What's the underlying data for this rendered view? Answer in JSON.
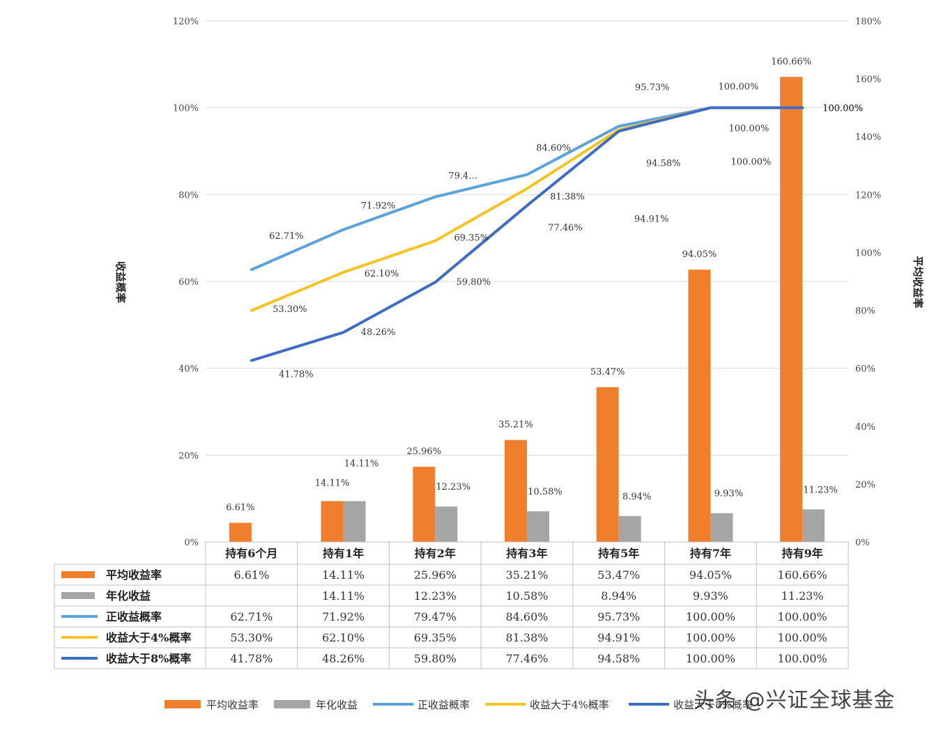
{
  "chart_data": {
    "type": "bar",
    "title": "",
    "categories": [
      "持有6个月",
      "持有1年",
      "持有2年",
      "持有3年",
      "持有5年",
      "持有7年",
      "持有9年"
    ],
    "left_axis": {
      "label": "收益概率",
      "range": [
        0,
        120
      ],
      "ticks": [
        "0%",
        "20%",
        "40%",
        "60%",
        "80%",
        "100%",
        "120%"
      ]
    },
    "right_axis": {
      "label": "平均收益率",
      "range": [
        0,
        180
      ],
      "ticks": [
        "0%",
        "20%",
        "40%",
        "60%",
        "80%",
        "100%",
        "120%",
        "140%",
        "160%",
        "180%"
      ]
    },
    "bar_series": [
      {
        "name": "平均收益率",
        "color": "#f07f2d",
        "axis": "right",
        "values": [
          6.61,
          14.11,
          25.96,
          35.21,
          53.47,
          94.05,
          160.66
        ],
        "labels": [
          "6.61%",
          "14.11%",
          "25.96%",
          "35.21%",
          "53.47%",
          "94.05%",
          "160.66%"
        ],
        "table": [
          "6.61%",
          "14.11%",
          "25.96%",
          "35.21%",
          "53.47%",
          "94.05%",
          "160.66%"
        ]
      },
      {
        "name": "年化收益",
        "color": "#a5a5a5",
        "axis": "right",
        "values": [
          null,
          14.11,
          12.23,
          10.58,
          8.94,
          9.93,
          11.23
        ],
        "labels": [
          "",
          "14.11%",
          "12.23%",
          "10.58%",
          "8.94%",
          "9.93%",
          "11.23%"
        ],
        "table": [
          "",
          "14.11%",
          "12.23%",
          "10.58%",
          "8.94%",
          "9.93%",
          "11.23%"
        ]
      }
    ],
    "line_series": [
      {
        "name": "正收益概率",
        "color": "#5aa2dc",
        "axis": "left",
        "values": [
          62.71,
          71.92,
          79.47,
          84.6,
          95.73,
          100.0,
          100.0
        ],
        "labels": [
          "62.71%",
          "71.92%",
          "79.4…",
          "84.60%",
          "95.73%",
          "100.00%",
          "100.00%"
        ],
        "table": [
          "62.71%",
          "71.92%",
          "79.47%",
          "84.60%",
          "95.73%",
          "100.00%",
          "100.00%"
        ]
      },
      {
        "name": "收益大于4%概率",
        "color": "#f5c324",
        "axis": "left",
        "values": [
          53.3,
          62.1,
          69.35,
          81.38,
          94.91,
          100.0,
          100.0
        ],
        "labels": [
          "53.30%",
          "62.10%",
          "69.35%",
          "81.38%",
          "94.91%",
          "100.00%",
          "100.00%"
        ],
        "table": [
          "53.30%",
          "62.10%",
          "69.35%",
          "81.38%",
          "94.91%",
          "100.00%",
          "100.00%"
        ]
      },
      {
        "name": "收益大于8%概率",
        "color": "#3c6cc4",
        "axis": "left",
        "values": [
          41.78,
          48.26,
          59.8,
          77.46,
          94.58,
          100.0,
          100.0
        ],
        "labels": [
          "41.78%",
          "48.26%",
          "59.80%",
          "77.46%",
          "94.58%",
          "100.00%",
          "100.00%"
        ],
        "table": [
          "41.78%",
          "48.26%",
          "59.80%",
          "77.46%",
          "94.58%",
          "100.00%",
          "100.00%"
        ]
      }
    ],
    "legend": {
      "position": "bottom",
      "entries": [
        "平均收益率",
        "年化收益",
        "正收益概率",
        "收益大于4%概率",
        "收益大于8%概率"
      ]
    },
    "grid": true
  },
  "watermark": {
    "text": "头条 @兴证全球基金"
  }
}
